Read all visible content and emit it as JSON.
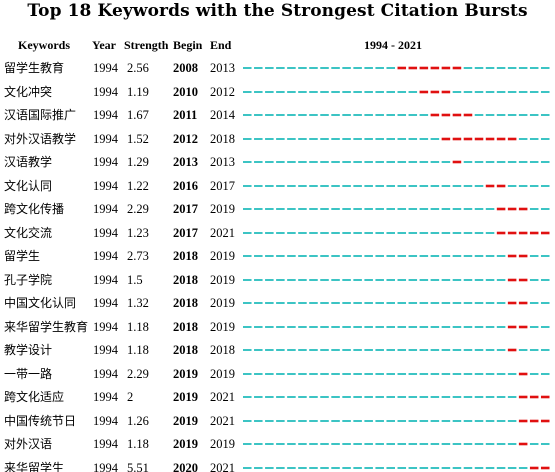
{
  "title": "Top 18 Keywords with the Strongest Citation Bursts",
  "headers": {
    "keywords": "Keywords",
    "year": "Year",
    "strength": "Strength",
    "begin": "Begin",
    "end": "End",
    "range": "1994 - 2021"
  },
  "timeline": {
    "start": 1994,
    "end": 2021
  },
  "colors": {
    "base": "#3cc4c4",
    "burst": "#e01010"
  },
  "rows": [
    {
      "keyword": "留学生教育",
      "year": "1994",
      "strength": "2.56",
      "begin": "2008",
      "end": "2013"
    },
    {
      "keyword": "文化冲突",
      "year": "1994",
      "strength": "1.19",
      "begin": "2010",
      "end": "2012"
    },
    {
      "keyword": "汉语国际推广",
      "year": "1994",
      "strength": "1.67",
      "begin": "2011",
      "end": "2014"
    },
    {
      "keyword": "对外汉语教学",
      "year": "1994",
      "strength": "1.52",
      "begin": "2012",
      "end": "2018"
    },
    {
      "keyword": "汉语教学",
      "year": "1994",
      "strength": "1.29",
      "begin": "2013",
      "end": "2013"
    },
    {
      "keyword": "文化认同",
      "year": "1994",
      "strength": "1.22",
      "begin": "2016",
      "end": "2017"
    },
    {
      "keyword": "跨文化传播",
      "year": "1994",
      "strength": "2.29",
      "begin": "2017",
      "end": "2019"
    },
    {
      "keyword": "文化交流",
      "year": "1994",
      "strength": "1.23",
      "begin": "2017",
      "end": "2021"
    },
    {
      "keyword": "留学生",
      "year": "1994",
      "strength": "2.73",
      "begin": "2018",
      "end": "2019"
    },
    {
      "keyword": "孔子学院",
      "year": "1994",
      "strength": "1.5",
      "begin": "2018",
      "end": "2019"
    },
    {
      "keyword": "中国文化认同",
      "year": "1994",
      "strength": "1.32",
      "begin": "2018",
      "end": "2019"
    },
    {
      "keyword": "来华留学生教育",
      "year": "1994",
      "strength": "1.18",
      "begin": "2018",
      "end": "2019"
    },
    {
      "keyword": "教学设计",
      "year": "1994",
      "strength": "1.18",
      "begin": "2018",
      "end": "2018"
    },
    {
      "keyword": "一带一路",
      "year": "1994",
      "strength": "2.29",
      "begin": "2019",
      "end": "2019"
    },
    {
      "keyword": "跨文化适应",
      "year": "1994",
      "strength": "2",
      "begin": "2019",
      "end": "2021"
    },
    {
      "keyword": "中国传统节日",
      "year": "1994",
      "strength": "1.26",
      "begin": "2019",
      "end": "2021"
    },
    {
      "keyword": "对外汉语",
      "year": "1994",
      "strength": "1.18",
      "begin": "2019",
      "end": "2019"
    },
    {
      "keyword": "来华留学生",
      "year": "1994",
      "strength": "5.51",
      "begin": "2020",
      "end": "2021"
    }
  ]
}
